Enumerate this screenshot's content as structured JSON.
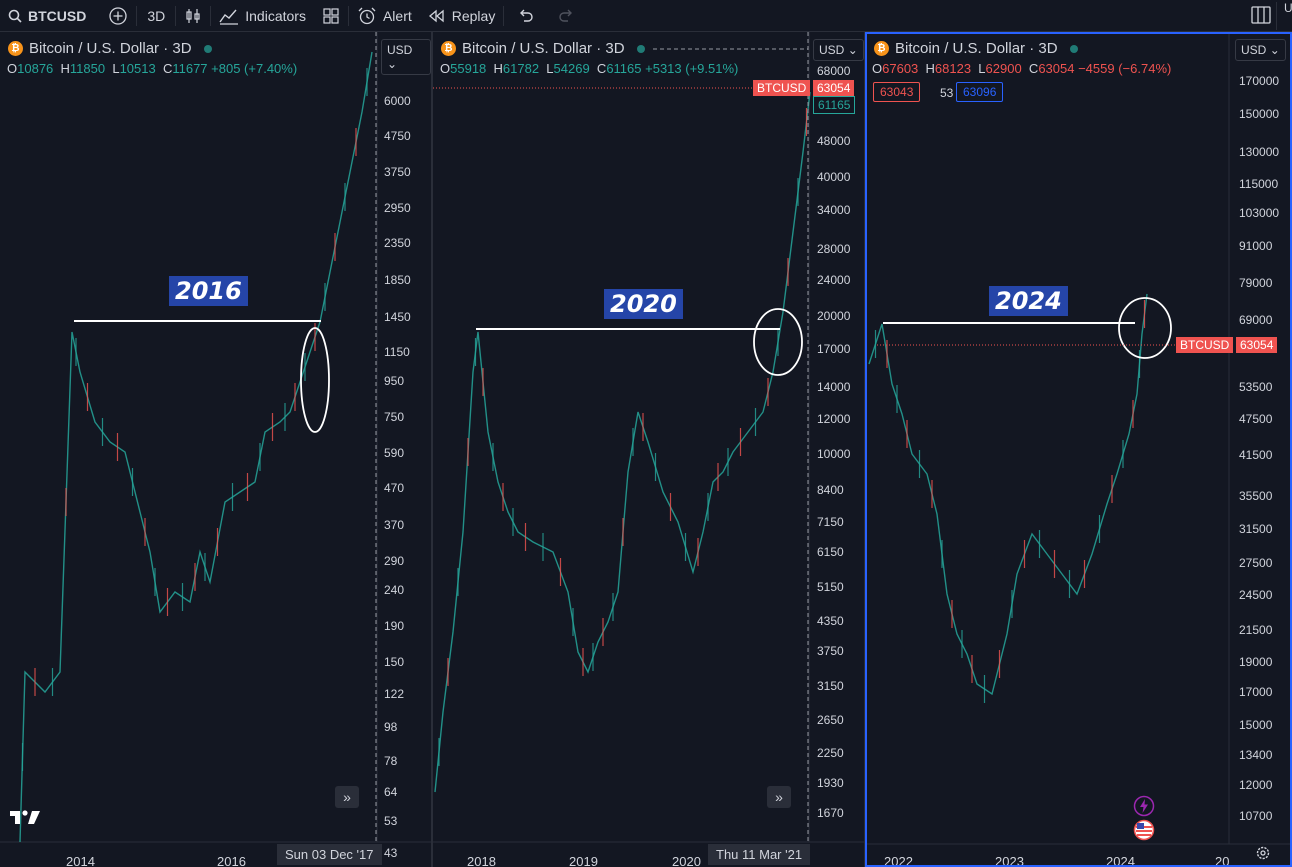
{
  "toolbar": {
    "symbol": "BTCUSD",
    "interval": "3D",
    "indicators": "Indicators",
    "alert": "Alert",
    "replay": "Replay",
    "cut_letter": "U"
  },
  "panels": [
    {
      "title": "Bitcoin / U.S. Dollar · 3D",
      "currency": "USD",
      "ohlc": {
        "o": "10876",
        "h": "11850",
        "l": "10513",
        "c": "11677",
        "chg": "+805 (+7.40%)",
        "dir": "up"
      },
      "year_label": "2016",
      "prices": [
        "6000",
        "4750",
        "3750",
        "2950",
        "2350",
        "1850",
        "1450",
        "1150",
        "950",
        "750",
        "590",
        "470",
        "370",
        "290",
        "240",
        "190",
        "150",
        "122",
        "98",
        "78",
        "64",
        "53",
        "43"
      ],
      "dates": [
        "2014",
        "2016"
      ],
      "crosshair_date": "Sun 03 Dec '17"
    },
    {
      "title": "Bitcoin / U.S. Dollar · 3D",
      "currency": "USD",
      "ohlc": {
        "o": "55918",
        "h": "61782",
        "l": "54269",
        "c": "61165",
        "chg": "+5313 (+9.51%)",
        "dir": "up"
      },
      "year_label": "2020",
      "prices": [
        "68000",
        "48000",
        "40000",
        "34000",
        "28000",
        "24000",
        "20000",
        "17000",
        "14000",
        "12000",
        "10000",
        "8400",
        "7150",
        "6150",
        "5150",
        "4350",
        "3750",
        "3150",
        "2650",
        "2250",
        "1930",
        "1670"
      ],
      "dates": [
        "2018",
        "2019",
        "2020"
      ],
      "crosshair_date": "Thu 11 Mar '21",
      "tag_symbol": "BTCUSD",
      "tag_red": "63054",
      "tag_green": "61165"
    },
    {
      "title": "Bitcoin / U.S. Dollar · 3D",
      "currency": "USD",
      "ohlc": {
        "o": "67603",
        "h": "68123",
        "l": "62900",
        "c": "63054",
        "chg": "−4559 (−6.74%)",
        "dir": "dn"
      },
      "year_label": "2024",
      "box_left": "63043",
      "box_mid": "53",
      "box_right": "63096",
      "prices": [
        "170000",
        "150000",
        "130000",
        "115000",
        "103000",
        "91000",
        "79000",
        "69000",
        "53500",
        "47500",
        "41500",
        "35500",
        "31500",
        "27500",
        "24500",
        "21500",
        "19000",
        "17000",
        "15000",
        "13400",
        "12000",
        "10700"
      ],
      "dates": [
        "2022",
        "2023",
        "2024",
        "20"
      ],
      "tag_symbol": "BTCUSD",
      "tag_price": "63054"
    }
  ],
  "colors": {
    "up": "#26a69a",
    "down": "#ef5350",
    "accent": "#2962ff",
    "banner": "#2545a8",
    "bitcoin": "#f7931a"
  }
}
